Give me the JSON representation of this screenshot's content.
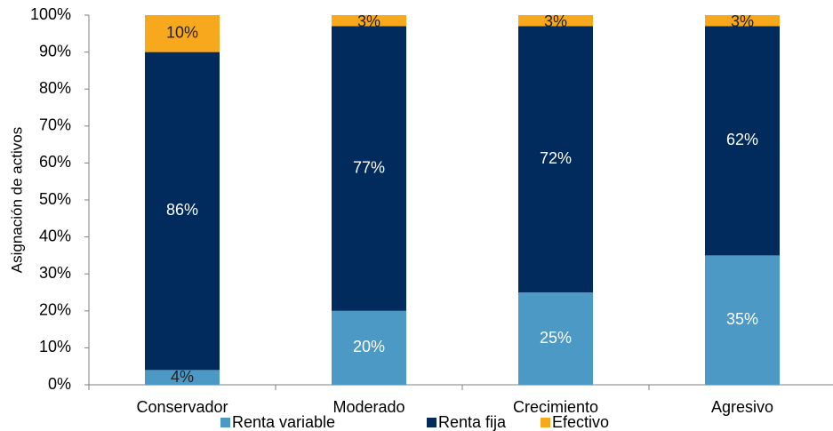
{
  "chart_data": {
    "type": "stacked_bar",
    "y_label": "Asignación de activos",
    "categories": [
      "Conservador",
      "Moderado",
      "Crecimiento",
      "Agresivo"
    ],
    "series": [
      {
        "name": "Renta variable",
        "color": "#4b99c4",
        "values": [
          4,
          20,
          25,
          35
        ],
        "value_labels": [
          "4%",
          "20%",
          "25%",
          "35%"
        ]
      },
      {
        "name": "Renta fija",
        "color": "#002b5c",
        "values": [
          86,
          77,
          72,
          62
        ],
        "value_labels": [
          "86%",
          "77%",
          "72%",
          "62%"
        ]
      },
      {
        "name": "Efectivo",
        "color": "#f8a81c",
        "values": [
          10,
          3,
          3,
          3
        ],
        "value_labels": [
          "10%",
          "3%",
          "3%",
          "3%"
        ]
      }
    ],
    "ylim": [
      0,
      100
    ],
    "yticks": [
      {
        "value": 0,
        "label": "0%"
      },
      {
        "value": 10,
        "label": "10%"
      },
      {
        "value": 20,
        "label": "20%"
      },
      {
        "value": 30,
        "label": "30%"
      },
      {
        "value": 40,
        "label": "40%"
      },
      {
        "value": 50,
        "label": "50%"
      },
      {
        "value": 60,
        "label": "60%"
      },
      {
        "value": 70,
        "label": "70%"
      },
      {
        "value": 80,
        "label": "80%"
      },
      {
        "value": 90,
        "label": "90%"
      },
      {
        "value": 100,
        "label": "100%"
      }
    ],
    "grid": false
  }
}
